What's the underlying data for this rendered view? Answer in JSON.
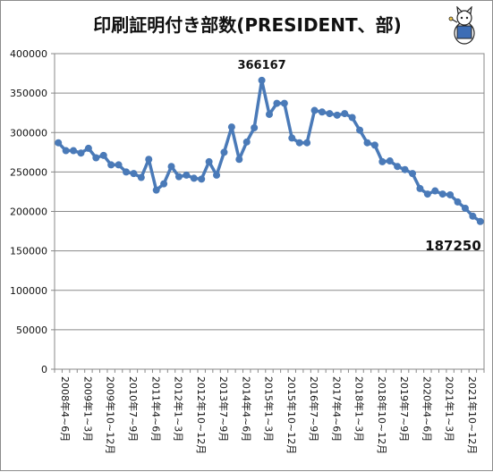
{
  "chart_data": {
    "type": "line",
    "title": "印刷証明付き部数(PRESIDENT、部)",
    "xlabel": "",
    "ylabel": "",
    "ylim": [
      0,
      400000
    ],
    "yticks": [
      0,
      50000,
      100000,
      150000,
      200000,
      250000,
      300000,
      350000,
      400000
    ],
    "grid": true,
    "legend": "none",
    "color": "#4a7ab8",
    "x_tick_labels": [
      "2008年4~6月",
      "2009年1~3月",
      "2009年10~12月",
      "2010年7~9月",
      "2011年4~6月",
      "2012年1~3月",
      "2012年10~12月",
      "2013年7~9月",
      "2014年4~6月",
      "2015年1~3月",
      "2015年10~12月",
      "2016年7~9月",
      "2017年4~6月",
      "2018年1~3月",
      "2018年10~12月",
      "2019年7~9月",
      "2020年4~6月",
      "2021年1~3月",
      "2021年10~12月"
    ],
    "values": [
      287000,
      277000,
      277000,
      274000,
      280000,
      268000,
      271000,
      259000,
      259000,
      250000,
      248000,
      243000,
      266000,
      227000,
      235000,
      257000,
      244000,
      246000,
      242000,
      241000,
      263000,
      246000,
      275000,
      307000,
      266000,
      288000,
      306000,
      366167,
      323000,
      337000,
      337000,
      293000,
      287000,
      287000,
      328000,
      326000,
      324000,
      322000,
      324000,
      319000,
      303000,
      287000,
      284000,
      263000,
      264000,
      257000,
      253000,
      248000,
      229000,
      222000,
      226000,
      222000,
      221000,
      212000,
      204000,
      194000,
      187250
    ],
    "annotations": [
      {
        "label": "366167"
      },
      {
        "label": "187250"
      }
    ]
  }
}
